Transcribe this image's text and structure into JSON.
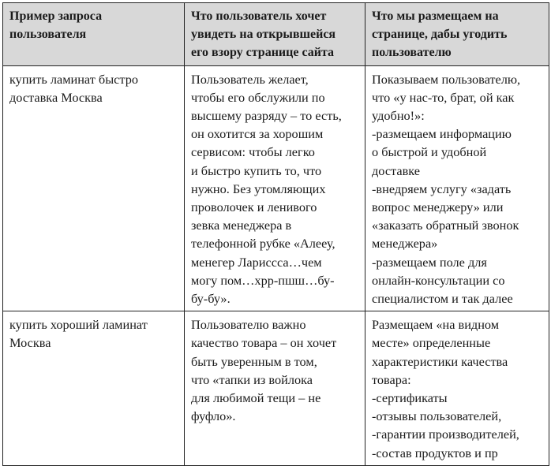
{
  "headers": [
    [
      "Пример запроса",
      "пользователя"
    ],
    [
      "Что пользователь хочет",
      "увидеть на открывшейся",
      "его взору странице сайта"
    ],
    [
      "Что мы размещаем на",
      "странице, дабы угодить",
      "пользователю"
    ]
  ],
  "rows": [
    [
      [
        "купить ламинат быстро",
        "доставка Москва"
      ],
      [
        "Пользователь желает,",
        "чтобы его обслужили по",
        "высшему разряду – то есть,",
        "он охотится за хорошим",
        "сервисом: чтобы легко",
        "и быстро купить то, что",
        "нужно. Без утомляющих",
        "проволочек и ленивого",
        "зевка менеджера в",
        "телефонной рубке «Алееу,",
        "менегер Ларисcса…чем",
        "могу пом…хрр-пшш…бу-",
        "бу-бу»."
      ],
      [
        "Показываем пользователю,",
        "что «у нас-то, брат, ой как",
        "удобно!»:",
        "-размещаем информацию",
        "о быстрой и удобной",
        "доставке",
        "-внедряем услугу «задать",
        "вопрос менеджеру» или",
        "«заказать обратный звонок",
        "менеджера»",
        "-размещаем поле для",
        "онлайн-консультации со",
        "специалистом и так далее"
      ]
    ],
    [
      [
        "купить хороший ламинат",
        "Москва"
      ],
      [
        "Пользователю важно",
        "качество товара – он хочет",
        "быть уверенным в том,",
        "что «тапки из войлока",
        "для любимой тещи – не",
        "фуфло»."
      ],
      [
        "Размещаем «на видном",
        "месте» определенные",
        "характеристики качества",
        "товара:",
        "-сертификаты",
        "-отзывы пользователей,",
        "-гарантии производителей,",
        "-состав продуктов и пр"
      ]
    ]
  ]
}
